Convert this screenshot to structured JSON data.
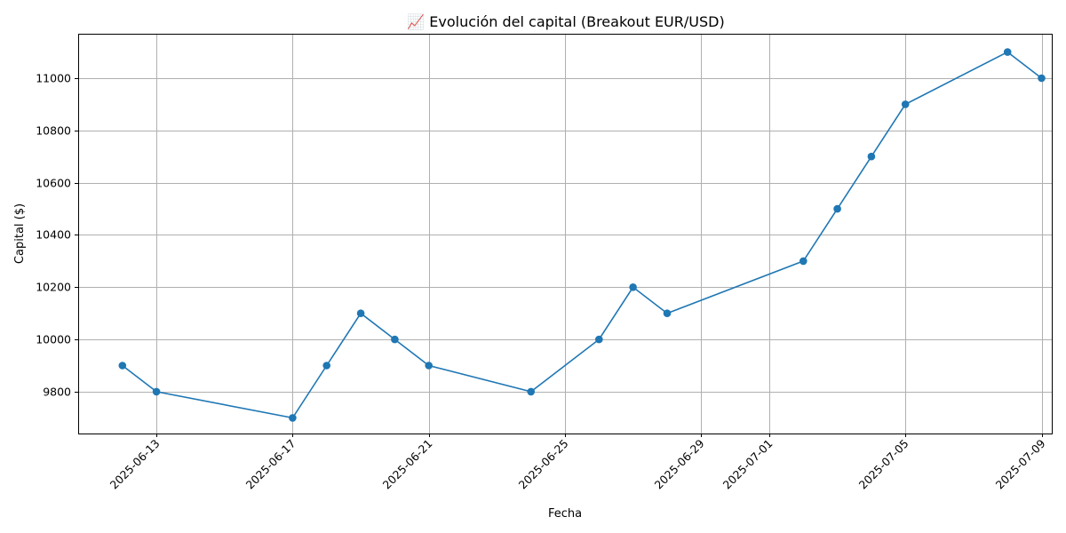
{
  "chart_data": {
    "type": "line",
    "title": "📈 Evolución del capital (Breakout EUR/USD)",
    "xlabel": "Fecha",
    "ylabel": "Capital ($)",
    "grid": true,
    "marker": "circle",
    "colors": {
      "series": "#1f77b4",
      "grid": "#b0b0b0"
    },
    "xlim": [
      "2025-06-11",
      "2025-07-09"
    ],
    "ylim": [
      9640,
      11170
    ],
    "x_ticks": [
      "2025-06-13",
      "2025-06-17",
      "2025-06-21",
      "2025-06-25",
      "2025-06-29",
      "2025-07-01",
      "2025-07-05",
      "2025-07-09"
    ],
    "y_ticks": [
      9800,
      10000,
      10200,
      10400,
      10600,
      10800,
      11000
    ],
    "series": [
      {
        "x": [
          "2025-06-12",
          "2025-06-13",
          "2025-06-17",
          "2025-06-18",
          "2025-06-19",
          "2025-06-20",
          "2025-06-21",
          "2025-06-24",
          "2025-06-26",
          "2025-06-27",
          "2025-06-28",
          "2025-07-02",
          "2025-07-03",
          "2025-07-04",
          "2025-07-05",
          "2025-07-08",
          "2025-07-09"
        ],
        "y": [
          9900,
          9800,
          9700,
          9900,
          10100,
          10000,
          9900,
          9800,
          10000,
          10200,
          10100,
          10300,
          10500,
          10700,
          10900,
          11100,
          11000
        ]
      }
    ]
  }
}
